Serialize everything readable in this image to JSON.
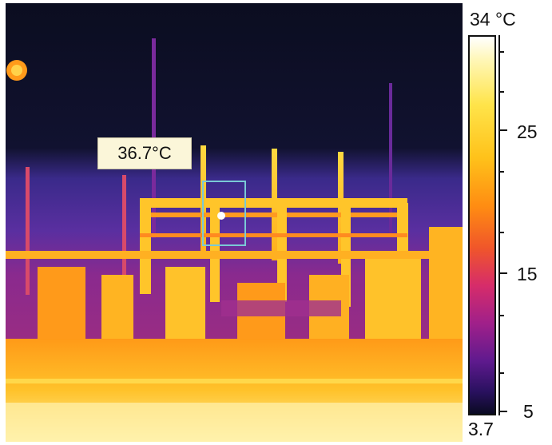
{
  "thermal_image": {
    "spot_reading": "36.7°C"
  },
  "scale": {
    "max_label": "34 °C",
    "min_label": "3.7",
    "tick_labels": [
      "25",
      "15",
      "5"
    ],
    "palette": [
      "#ffffff",
      "#ffe44a",
      "#ff8c12",
      "#d62c6a",
      "#5f1a8e",
      "#0a0a22"
    ]
  }
}
